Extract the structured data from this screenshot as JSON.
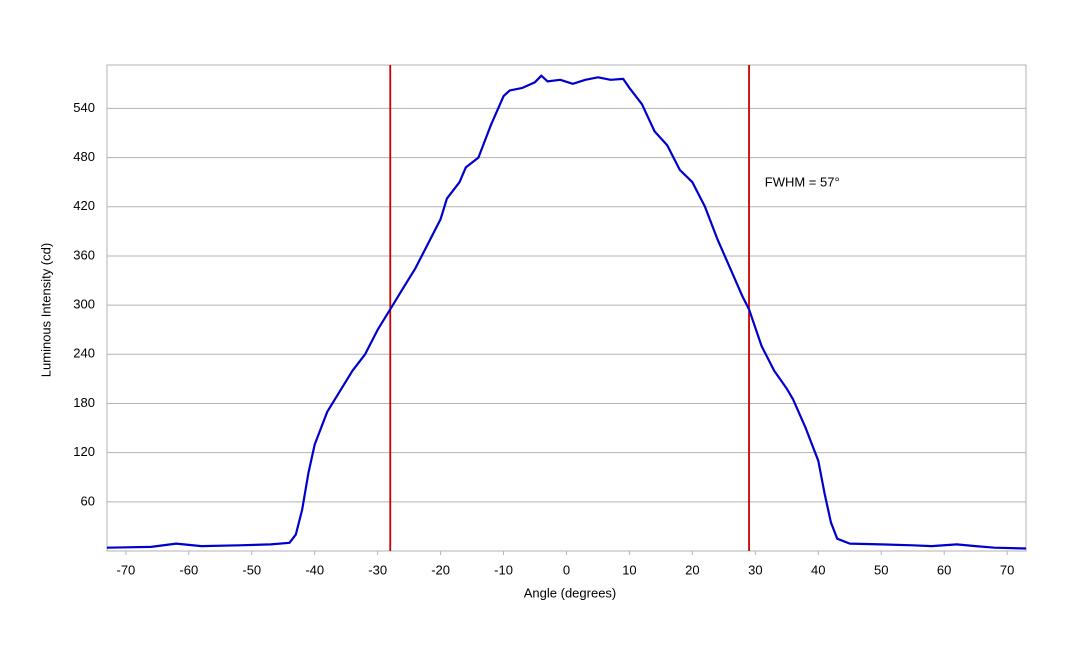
{
  "chart_data": {
    "type": "line",
    "xlabel": "Angle (degrees)",
    "ylabel": "Luminous Intensity (cd)",
    "xlim": [
      -73,
      73
    ],
    "ylim": [
      0,
      593
    ],
    "xticks": [
      -70,
      -60,
      -50,
      -40,
      -30,
      -20,
      -10,
      0,
      10,
      20,
      30,
      40,
      50,
      60,
      70
    ],
    "yticks": [
      60,
      120,
      180,
      240,
      300,
      360,
      420,
      480,
      540
    ],
    "grid": true,
    "series": [
      {
        "color": "#0000cc",
        "x": [
          -73,
          -66,
          -62,
          -58,
          -52,
          -47,
          -44,
          -43,
          -42,
          -41,
          -40,
          -38,
          -36,
          -34,
          -32,
          -30,
          -28,
          -26,
          -24,
          -22,
          -20,
          -19,
          -17,
          -16,
          -14,
          -12,
          -10,
          -9,
          -7,
          -5,
          -4,
          -3,
          -1,
          1,
          3,
          5,
          7,
          9,
          10,
          12,
          14,
          16,
          18,
          20,
          22,
          24,
          26,
          28,
          29,
          31,
          33,
          35,
          36,
          38,
          40,
          41,
          42,
          43,
          45,
          50,
          55,
          58,
          62,
          65,
          68,
          73
        ],
        "values": [
          4,
          5,
          9,
          6,
          7,
          8,
          10,
          20,
          50,
          95,
          130,
          170,
          195,
          220,
          240,
          270,
          295,
          320,
          345,
          375,
          405,
          430,
          450,
          468,
          480,
          520,
          555,
          562,
          565,
          572,
          580,
          573,
          575,
          570,
          575,
          578,
          575,
          576,
          565,
          545,
          512,
          495,
          465,
          450,
          420,
          380,
          345,
          310,
          295,
          250,
          220,
          198,
          185,
          150,
          110,
          70,
          35,
          15,
          9,
          8,
          7,
          6,
          8,
          6,
          4,
          3
        ]
      }
    ],
    "vlines": [
      {
        "value": -28,
        "color": "#cc0000"
      },
      {
        "value": 29,
        "color": "#cc0000"
      }
    ],
    "annotations": [
      {
        "text": "FWHM = 57°",
        "x": 31.5,
        "y": 449
      }
    ]
  }
}
